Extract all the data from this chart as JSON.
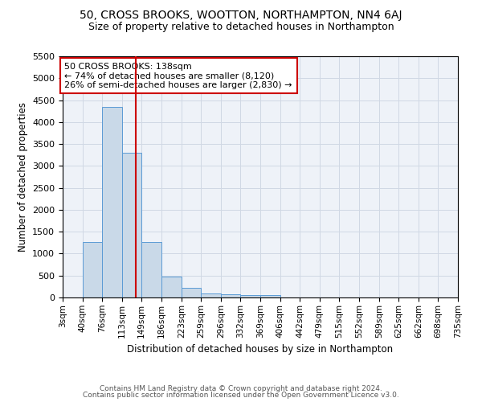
{
  "title": "50, CROSS BROOKS, WOOTTON, NORTHAMPTON, NN4 6AJ",
  "subtitle": "Size of property relative to detached houses in Northampton",
  "xlabel": "Distribution of detached houses by size in Northampton",
  "ylabel": "Number of detached properties",
  "bin_edges": [
    3,
    40,
    76,
    113,
    149,
    186,
    223,
    259,
    296,
    332,
    369,
    406,
    442,
    479,
    515,
    552,
    589,
    625,
    662,
    698,
    735
  ],
  "bar_heights": [
    0,
    1270,
    4350,
    3300,
    1270,
    470,
    215,
    90,
    80,
    55,
    55,
    0,
    0,
    0,
    0,
    0,
    0,
    0,
    0,
    0
  ],
  "bar_color": "#c9d9e8",
  "bar_edge_color": "#5b9bd5",
  "property_size": 138,
  "ylim": [
    0,
    5500
  ],
  "yticks": [
    0,
    500,
    1000,
    1500,
    2000,
    2500,
    3000,
    3500,
    4000,
    4500,
    5000,
    5500
  ],
  "annotation_text": "50 CROSS BROOKS: 138sqm\n← 74% of detached houses are smaller (8,120)\n26% of semi-detached houses are larger (2,830) →",
  "annotation_box_color": "#ffffff",
  "annotation_box_edge_color": "#cc0000",
  "red_line_color": "#cc0000",
  "grid_color": "#d0d8e4",
  "bg_color": "#eef2f8",
  "footer_line1": "Contains HM Land Registry data © Crown copyright and database right 2024.",
  "footer_line2": "Contains public sector information licensed under the Open Government Licence v3.0.",
  "title_fontsize": 10,
  "subtitle_fontsize": 9,
  "title_fontweight": "normal"
}
